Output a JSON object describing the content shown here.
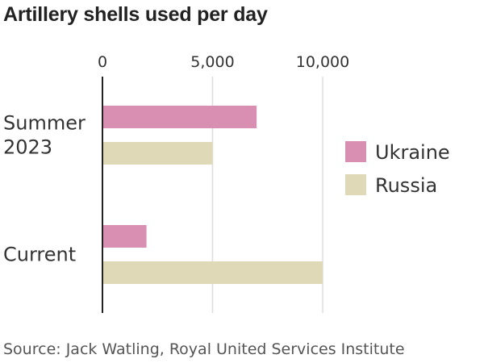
{
  "title": "Artillery shells used per day",
  "source": "Source: Jack Watling, Royal United Services Institute",
  "colors": {
    "ukraine": "#d88fb1",
    "russia": "#dfd9b8",
    "gridline": "#dddddd",
    "axis": "#222222"
  },
  "chart_data": {
    "type": "bar",
    "orientation": "horizontal",
    "title": "Artillery shells used per day",
    "categories": [
      [
        "Summer",
        "2023"
      ],
      [
        "Current"
      ]
    ],
    "series": [
      {
        "name": "Ukraine",
        "values": [
          7000,
          2000
        ]
      },
      {
        "name": "Russia",
        "values": [
          5000,
          10000
        ]
      }
    ],
    "xlim": [
      0,
      10000
    ],
    "xticks": [
      0,
      5000,
      10000
    ],
    "xtick_labels": [
      "0",
      "5,000",
      "10,000"
    ],
    "grid": true,
    "legend_position": "right"
  }
}
